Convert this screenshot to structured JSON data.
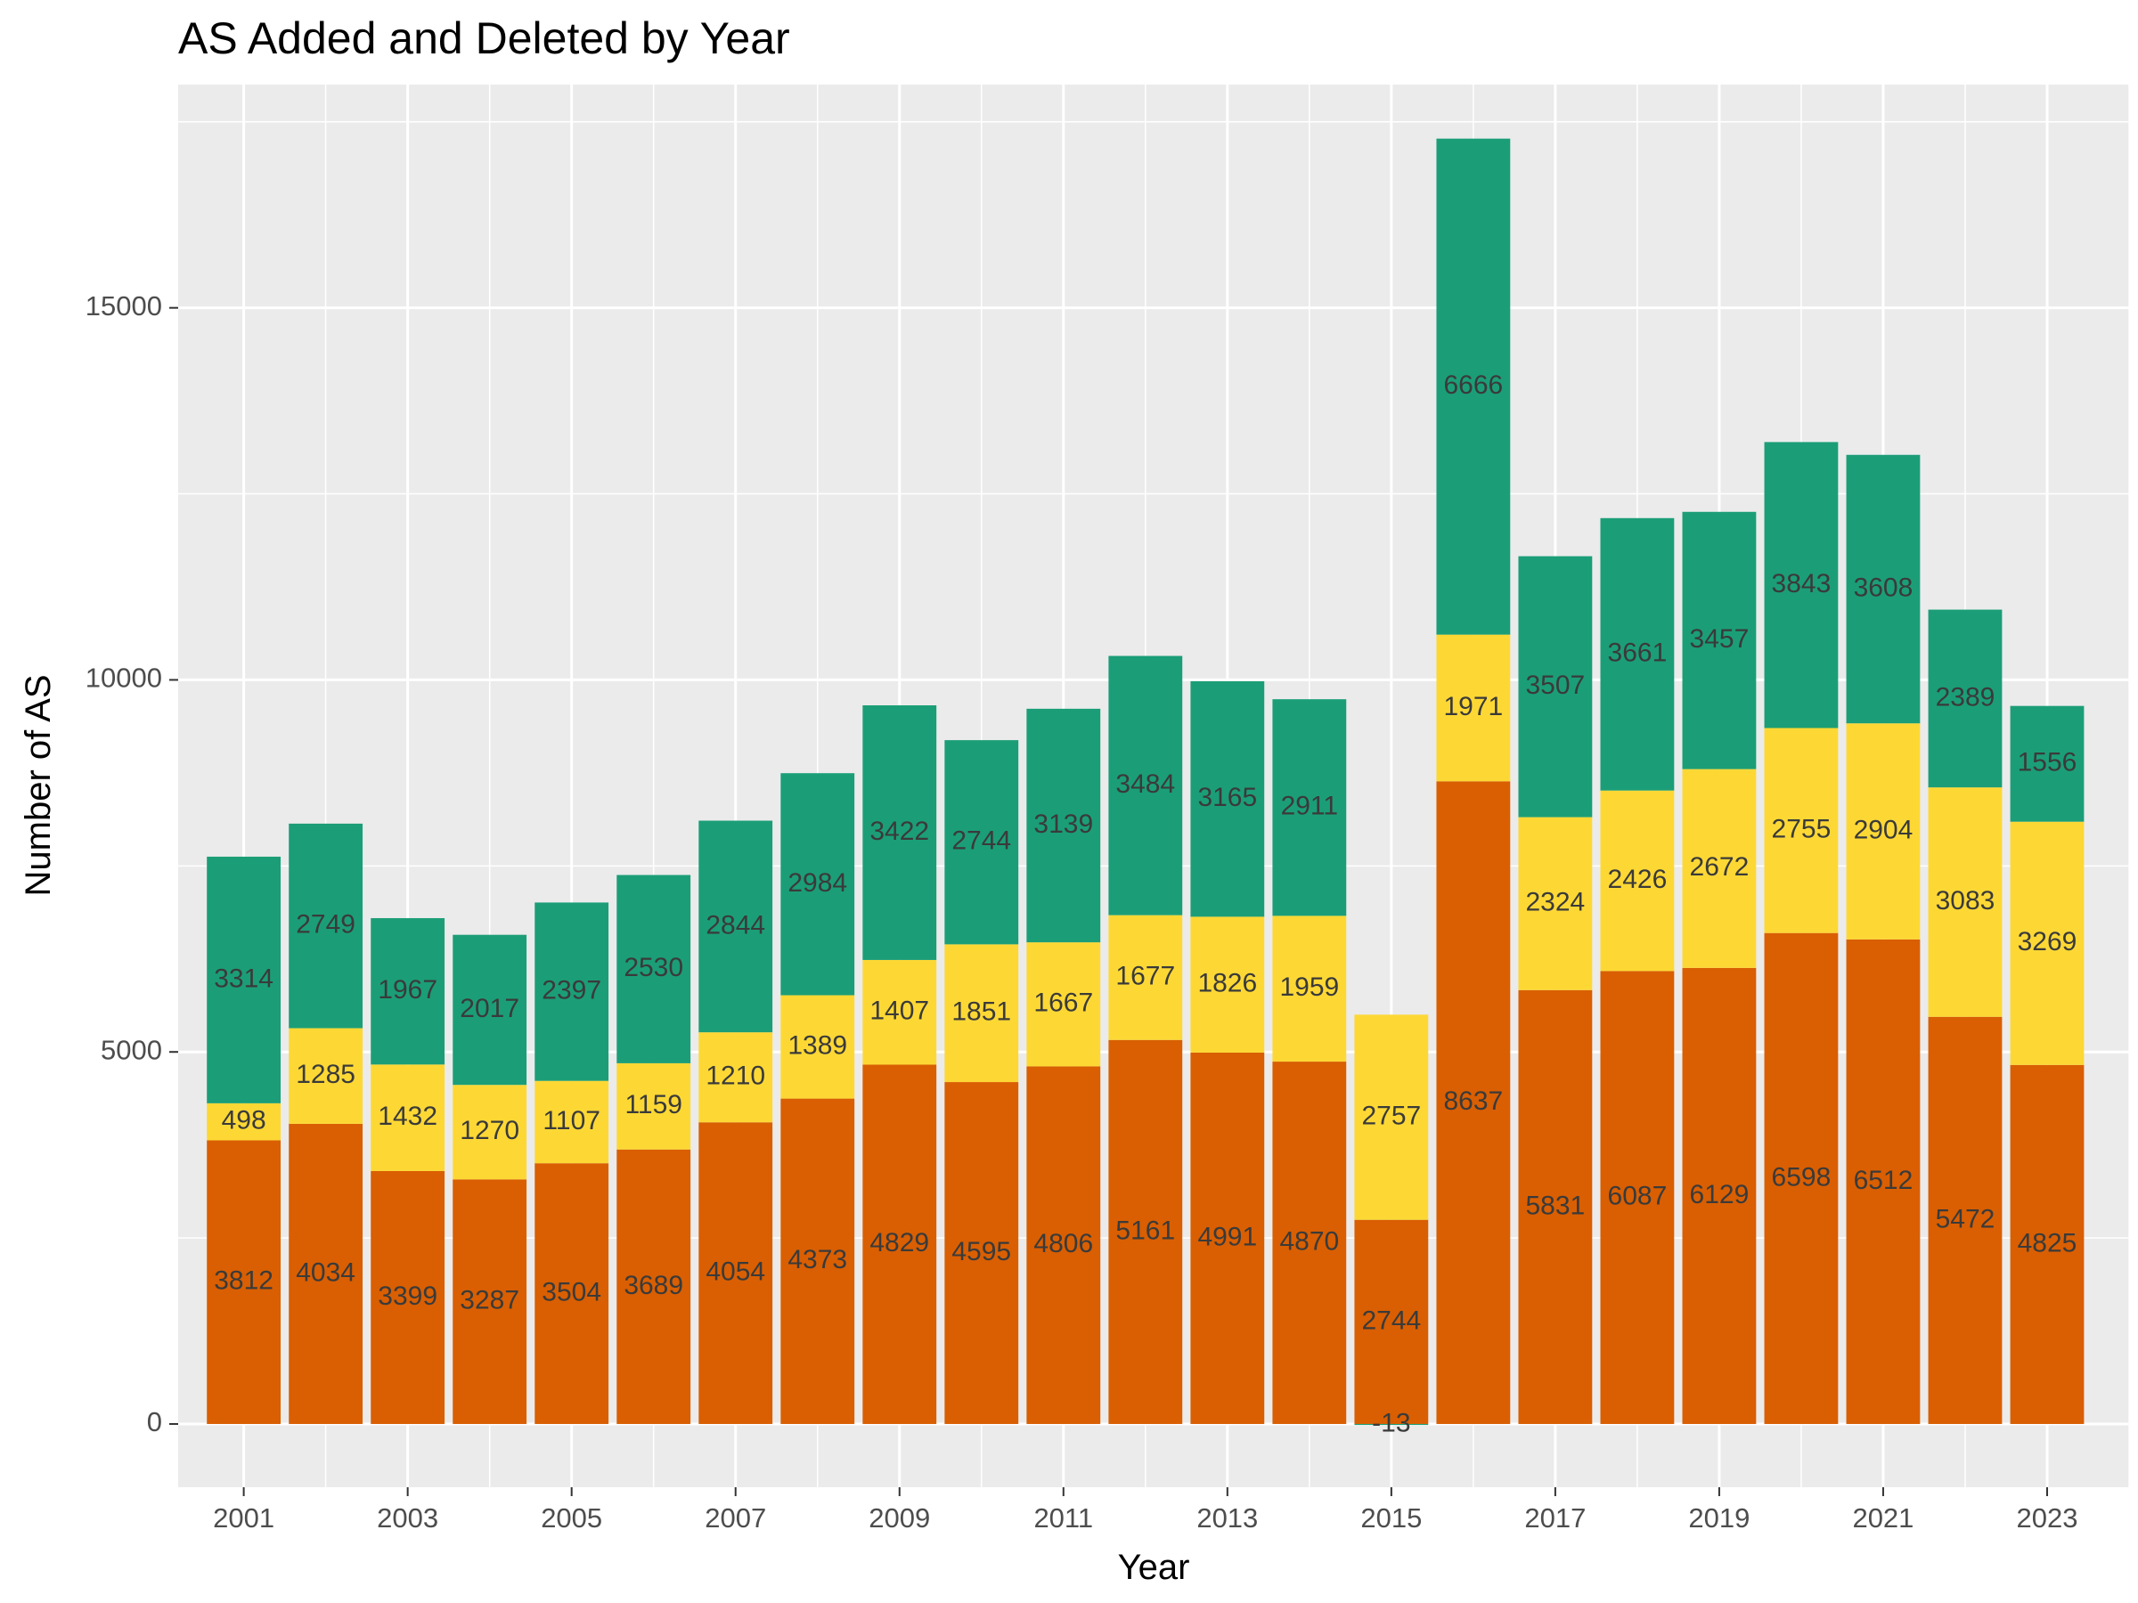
{
  "chart_data": {
    "type": "bar",
    "stacked": true,
    "title": "AS Added and Deleted by Year",
    "xlabel": "Year",
    "ylabel": "Number of AS",
    "x": [
      2001,
      2002,
      2003,
      2004,
      2005,
      2006,
      2007,
      2008,
      2009,
      2010,
      2011,
      2012,
      2013,
      2014,
      2015,
      2016,
      2017,
      2018,
      2019,
      2020,
      2021,
      2022,
      2023
    ],
    "x_ticks": [
      2001,
      2003,
      2005,
      2007,
      2009,
      2011,
      2013,
      2015,
      2017,
      2019,
      2021,
      2023
    ],
    "y_ticks": [
      0,
      5000,
      10000,
      15000
    ],
    "ylim": [
      -850,
      18000
    ],
    "xlim": [
      2000.2,
      2024.0
    ],
    "grid": true,
    "legend": "none",
    "series": [
      {
        "color": "#1b9e77",
        "values": [
          3314,
          2749,
          1967,
          2017,
          2397,
          2530,
          2844,
          2984,
          3422,
          2744,
          3139,
          3484,
          3165,
          2911,
          -13,
          6666,
          3507,
          3661,
          3457,
          3843,
          3608,
          2389,
          1556
        ]
      },
      {
        "color": "#fdd835",
        "values": [
          498,
          1285,
          1432,
          1270,
          1107,
          1159,
          1210,
          1389,
          1407,
          1851,
          1667,
          1677,
          1826,
          1959,
          2757,
          1971,
          2324,
          2426,
          2672,
          2755,
          2904,
          3083,
          3269
        ]
      },
      {
        "color": "#d95f02",
        "values": [
          3812,
          4034,
          3399,
          3287,
          3504,
          3689,
          4054,
          4373,
          4829,
          4595,
          4806,
          5161,
          4991,
          4870,
          2744,
          8637,
          5831,
          6087,
          6129,
          6598,
          6512,
          5472,
          4825
        ]
      }
    ]
  },
  "colors": {
    "panel_background": "#ebebeb",
    "grid_line": "#ffffff",
    "tick_text": "#4d4d4d"
  }
}
